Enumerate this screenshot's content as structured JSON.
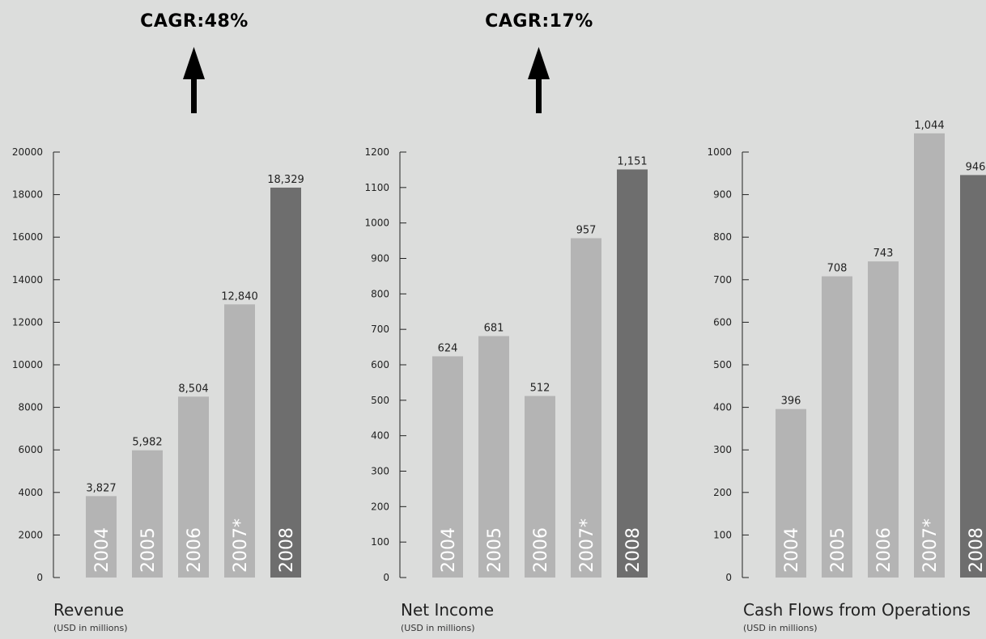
{
  "colors": {
    "background": "#dcdddc",
    "bar": "#b4b4b4",
    "bar_highlight": "#6e6e6e",
    "text": "#222222",
    "bar_label_text": "#ffffff"
  },
  "highlights": [
    {
      "label": "CAGR:48%"
    },
    {
      "label": "CAGR:17%"
    }
  ],
  "chart_data": [
    {
      "type": "bar",
      "title": "Revenue",
      "subtitle": "(USD in millions)",
      "categories": [
        "2004",
        "2005",
        "2006",
        "2007*",
        "2008"
      ],
      "values": [
        3827,
        5982,
        8504,
        12840,
        18329
      ],
      "value_labels": [
        "3,827",
        "5,982",
        "8,504",
        "12,840",
        "18,329"
      ],
      "highlight_index": 4,
      "ylim": [
        0,
        20000
      ],
      "yticks": [
        0,
        2000,
        4000,
        6000,
        8000,
        10000,
        12000,
        14000,
        16000,
        18000,
        20000
      ],
      "grid": false
    },
    {
      "type": "bar",
      "title": "Net Income",
      "subtitle": "(USD in millions)",
      "categories": [
        "2004",
        "2005",
        "2006",
        "2007*",
        "2008"
      ],
      "values": [
        624,
        681,
        512,
        957,
        1151
      ],
      "value_labels": [
        "624",
        "681",
        "512",
        "957",
        "1,151"
      ],
      "highlight_index": 4,
      "ylim": [
        0,
        1200
      ],
      "yticks": [
        0,
        100,
        200,
        300,
        400,
        500,
        600,
        700,
        800,
        900,
        1000,
        1100,
        1200
      ],
      "grid": false
    },
    {
      "type": "bar",
      "title": "Cash Flows from Operations",
      "subtitle": "(USD in millions)",
      "categories": [
        "2004",
        "2005",
        "2006",
        "2007*",
        "2008"
      ],
      "values": [
        396,
        708,
        743,
        1044,
        946
      ],
      "value_labels": [
        "396",
        "708",
        "743",
        "1,044",
        "946"
      ],
      "highlight_index": 4,
      "ylim": [
        0,
        1000
      ],
      "yticks": [
        0,
        100,
        200,
        300,
        400,
        500,
        600,
        700,
        800,
        900,
        1000
      ],
      "grid": false
    }
  ]
}
